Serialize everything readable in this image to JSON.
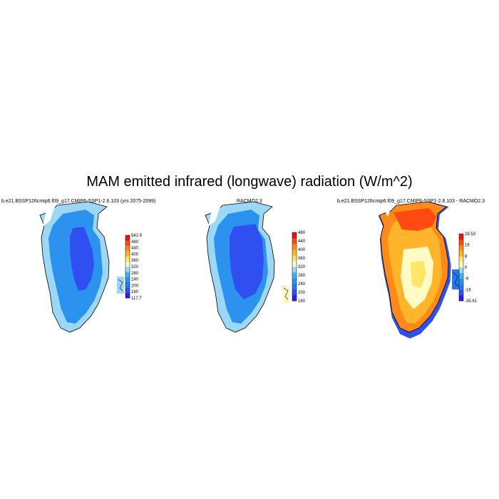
{
  "figure": {
    "title": "MAM emitted infrared (longwave) radiation (W/m^2)"
  },
  "panels": [
    {
      "title": "b.e21.BSSP126cmip6.f09_g17.CMIP6-SSP1-2.6.103 (yrs 2075-2099)",
      "colorbar": {
        "colors": [
          "#3a18e8",
          "#2f4ff0",
          "#2a78f0",
          "#2b93ef",
          "#3ab5f2",
          "#9ad8f5",
          "#fffbc4",
          "#ffe56a",
          "#ffb52a",
          "#ff8a1c",
          "#ff4a14",
          "#e61616"
        ],
        "labels": [
          "542.9",
          "480",
          "440",
          "400",
          "360",
          "320",
          "280",
          "240",
          "200",
          "160",
          "117.7"
        ]
      }
    },
    {
      "title": "RACMO2.3",
      "colorbar": {
        "colors": [
          "#3a18e8",
          "#2f4ff0",
          "#2a78f0",
          "#2b93ef",
          "#3ab5f2",
          "#9ad8f5",
          "#fffbc4",
          "#ffe56a",
          "#ffb52a",
          "#ff8a1c",
          "#ff4a14",
          "#e61616"
        ],
        "labels": [
          "480",
          "440",
          "400",
          "360",
          "320",
          "280",
          "240",
          "200",
          "160"
        ]
      }
    },
    {
      "title": "b.e21.BSSP126cmip6.f09_g17.CMIP6-SSP1-2.6.103 - RACMO2.3",
      "colorbar": {
        "colors": [
          "#3a18e8",
          "#2f4ff0",
          "#2a78f0",
          "#2b93ef",
          "#3ab5f2",
          "#9ad8f5",
          "#fffbc4",
          "#ffe56a",
          "#ffb52a",
          "#ff8a1c",
          "#ff4a14",
          "#e61616"
        ],
        "labels": [
          "29.53",
          "16",
          "8",
          "0",
          "-8",
          "-16",
          "-35.61"
        ]
      }
    }
  ]
}
